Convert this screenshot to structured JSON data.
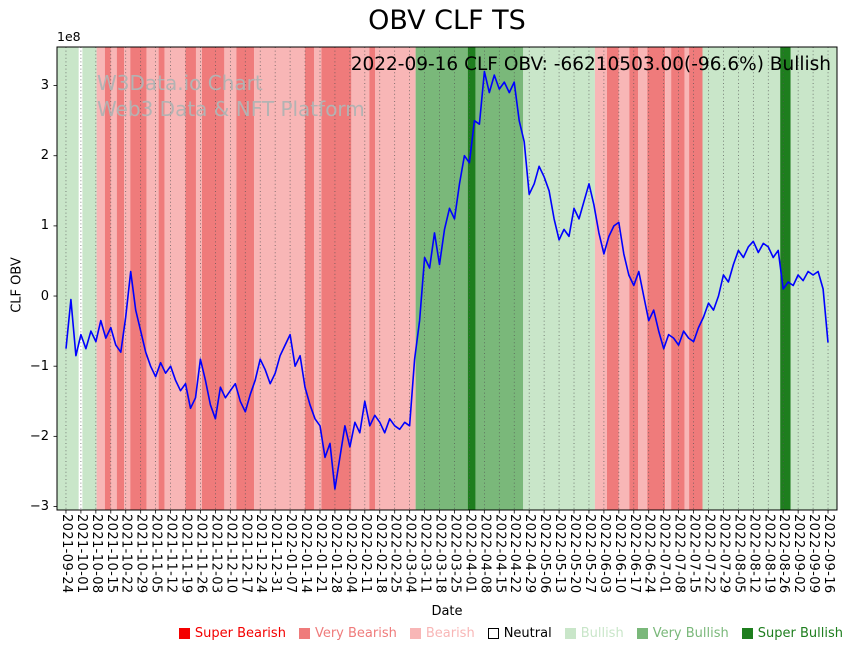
{
  "header": {
    "title": "OBV CLF TS"
  },
  "annotation": {
    "text": "2022-09-16 CLF OBV: -66210503.00(-96.6%) Bullish"
  },
  "watermark": {
    "line1": "W3Data.io Chart",
    "line2": "Web3 Data & NFT Platform"
  },
  "axes": {
    "ylabel": "CLF OBV",
    "xlabel": "Date",
    "offset_label": "1e8"
  },
  "legend": {
    "items": [
      {
        "label": "Super Bearish",
        "level": "super_bearish"
      },
      {
        "label": "Very Bearish",
        "level": "very_bearish"
      },
      {
        "label": "Bearish",
        "level": "bearish"
      },
      {
        "label": "Neutral",
        "level": "neutral"
      },
      {
        "label": "Bullish",
        "level": "bullish"
      },
      {
        "label": "Very Bullish",
        "level": "very_bullish"
      },
      {
        "label": "Super Bullish",
        "level": "super_bullish"
      }
    ]
  },
  "chart_data": {
    "type": "line",
    "title": "OBV CLF TS",
    "xlabel": "Date",
    "ylabel": "CLF OBV",
    "y_unit": "1e8",
    "ylim": [
      -3.05,
      3.55
    ],
    "yticks": [
      -3,
      -2,
      -1,
      0,
      1,
      2,
      3
    ],
    "xlim_weeks": [
      -0.6,
      51.6
    ],
    "grid_color": "#555555",
    "line_color": "#0000ff",
    "x_tick_labels": [
      "2021-09-24",
      "2021-10-01",
      "2021-10-08",
      "2021-10-15",
      "2021-10-22",
      "2021-10-29",
      "2021-11-05",
      "2021-11-12",
      "2021-11-19",
      "2021-11-26",
      "2021-12-03",
      "2021-12-10",
      "2021-12-17",
      "2021-12-24",
      "2021-12-31",
      "2022-01-07",
      "2022-01-14",
      "2022-01-21",
      "2022-01-28",
      "2022-02-04",
      "2022-02-11",
      "2022-02-18",
      "2022-02-25",
      "2022-03-04",
      "2022-03-11",
      "2022-03-18",
      "2022-03-25",
      "2022-04-01",
      "2022-04-08",
      "2022-04-15",
      "2022-04-22",
      "2022-04-29",
      "2022-05-06",
      "2022-05-13",
      "2022-05-20",
      "2022-05-27",
      "2022-06-03",
      "2022-06-10",
      "2022-06-17",
      "2022-06-24",
      "2022-07-01",
      "2022-07-08",
      "2022-07-15",
      "2022-07-22",
      "2022-07-29",
      "2022-08-05",
      "2022-08-12",
      "2022-08-19",
      "2022-08-26",
      "2022-09-02",
      "2022-09-09",
      "2022-09-16"
    ],
    "band_colors": {
      "super_bearish": "#f40000",
      "very_bearish": "#ef7b7b",
      "bearish": "#f8b6b6",
      "neutral": "#ffffff",
      "bullish": "#c9e6c9",
      "very_bullish": "#7ab87a",
      "super_bullish": "#1e7e1e"
    },
    "bands": [
      {
        "start": -0.6,
        "end": 0.85,
        "level": "bullish"
      },
      {
        "start": 1.1,
        "end": 2.05,
        "level": "bullish"
      },
      {
        "start": 2.05,
        "end": 2.6,
        "level": "bearish"
      },
      {
        "start": 2.6,
        "end": 3.0,
        "level": "very_bearish"
      },
      {
        "start": 3.0,
        "end": 3.4,
        "level": "bearish"
      },
      {
        "start": 3.4,
        "end": 3.9,
        "level": "very_bearish"
      },
      {
        "start": 3.9,
        "end": 4.3,
        "level": "bearish"
      },
      {
        "start": 4.3,
        "end": 5.4,
        "level": "very_bearish"
      },
      {
        "start": 5.4,
        "end": 6.2,
        "level": "bearish"
      },
      {
        "start": 6.2,
        "end": 6.6,
        "level": "very_bearish"
      },
      {
        "start": 6.6,
        "end": 8.0,
        "level": "bearish"
      },
      {
        "start": 8.0,
        "end": 8.7,
        "level": "very_bearish"
      },
      {
        "start": 8.7,
        "end": 9.1,
        "level": "bearish"
      },
      {
        "start": 9.1,
        "end": 10.6,
        "level": "very_bearish"
      },
      {
        "start": 10.6,
        "end": 11.4,
        "level": "bearish"
      },
      {
        "start": 11.4,
        "end": 12.6,
        "level": "very_bearish"
      },
      {
        "start": 12.6,
        "end": 16.0,
        "level": "bearish"
      },
      {
        "start": 16.0,
        "end": 16.6,
        "level": "very_bearish"
      },
      {
        "start": 16.6,
        "end": 17.1,
        "level": "bearish"
      },
      {
        "start": 17.1,
        "end": 19.1,
        "level": "very_bearish"
      },
      {
        "start": 19.1,
        "end": 20.3,
        "level": "bearish"
      },
      {
        "start": 20.3,
        "end": 20.7,
        "level": "very_bearish"
      },
      {
        "start": 20.7,
        "end": 23.4,
        "level": "bearish"
      },
      {
        "start": 23.4,
        "end": 30.6,
        "level": "very_bullish"
      },
      {
        "start": 26.9,
        "end": 27.4,
        "level": "super_bullish"
      },
      {
        "start": 30.6,
        "end": 35.4,
        "level": "bullish"
      },
      {
        "start": 35.4,
        "end": 36.2,
        "level": "bearish"
      },
      {
        "start": 36.2,
        "end": 37.0,
        "level": "very_bearish"
      },
      {
        "start": 37.0,
        "end": 37.7,
        "level": "bearish"
      },
      {
        "start": 37.7,
        "end": 38.3,
        "level": "very_bearish"
      },
      {
        "start": 38.3,
        "end": 38.9,
        "level": "bearish"
      },
      {
        "start": 38.9,
        "end": 40.1,
        "level": "very_bearish"
      },
      {
        "start": 40.1,
        "end": 40.5,
        "level": "bearish"
      },
      {
        "start": 40.5,
        "end": 41.4,
        "level": "very_bearish"
      },
      {
        "start": 41.4,
        "end": 41.7,
        "level": "bearish"
      },
      {
        "start": 41.7,
        "end": 42.6,
        "level": "very_bearish"
      },
      {
        "start": 42.6,
        "end": 47.8,
        "level": "bullish"
      },
      {
        "start": 47.8,
        "end": 48.5,
        "level": "super_bullish"
      },
      {
        "start": 48.5,
        "end": 51.6,
        "level": "bullish"
      }
    ],
    "series": [
      {
        "name": "CLF OBV",
        "points_per_week": 3,
        "start_tick": "2021-09-24",
        "values_1e8": [
          -0.75,
          -0.05,
          -0.85,
          -0.55,
          -0.75,
          -0.5,
          -0.65,
          -0.35,
          -0.6,
          -0.45,
          -0.7,
          -0.8,
          -0.3,
          0.35,
          -0.2,
          -0.5,
          -0.8,
          -1.0,
          -1.15,
          -0.95,
          -1.1,
          -1.0,
          -1.2,
          -1.35,
          -1.25,
          -1.6,
          -1.45,
          -0.9,
          -1.2,
          -1.55,
          -1.75,
          -1.3,
          -1.45,
          -1.35,
          -1.25,
          -1.5,
          -1.65,
          -1.4,
          -1.2,
          -0.9,
          -1.05,
          -1.25,
          -1.1,
          -0.85,
          -0.7,
          -0.55,
          -1.0,
          -0.85,
          -1.3,
          -1.55,
          -1.75,
          -1.85,
          -2.3,
          -2.1,
          -2.75,
          -2.3,
          -1.85,
          -2.15,
          -1.8,
          -1.95,
          -1.5,
          -1.85,
          -1.7,
          -1.8,
          -1.95,
          -1.75,
          -1.85,
          -1.9,
          -1.8,
          -1.85,
          -0.9,
          -0.35,
          0.55,
          0.4,
          0.9,
          0.45,
          0.95,
          1.25,
          1.1,
          1.6,
          2.0,
          1.9,
          2.5,
          2.45,
          3.2,
          2.9,
          3.15,
          2.95,
          3.05,
          2.9,
          3.05,
          2.5,
          2.2,
          1.45,
          1.6,
          1.85,
          1.7,
          1.5,
          1.1,
          0.8,
          0.95,
          0.85,
          1.25,
          1.1,
          1.35,
          1.6,
          1.3,
          0.9,
          0.6,
          0.85,
          1.0,
          1.05,
          0.6,
          0.3,
          0.15,
          0.35,
          0.0,
          -0.35,
          -0.2,
          -0.5,
          -0.75,
          -0.55,
          -0.6,
          -0.7,
          -0.5,
          -0.6,
          -0.65,
          -0.45,
          -0.3,
          -0.1,
          -0.2,
          0.0,
          0.3,
          0.2,
          0.45,
          0.65,
          0.55,
          0.7,
          0.78,
          0.62,
          0.75,
          0.7,
          0.55,
          0.65,
          0.1,
          0.2,
          0.15,
          0.3,
          0.22,
          0.35,
          0.3,
          0.35,
          0.1,
          -0.662
        ]
      }
    ],
    "last_point": {
      "date": "2022-09-16",
      "obv": -66210503.0,
      "change_pct": -96.6,
      "signal": "Bullish"
    }
  }
}
